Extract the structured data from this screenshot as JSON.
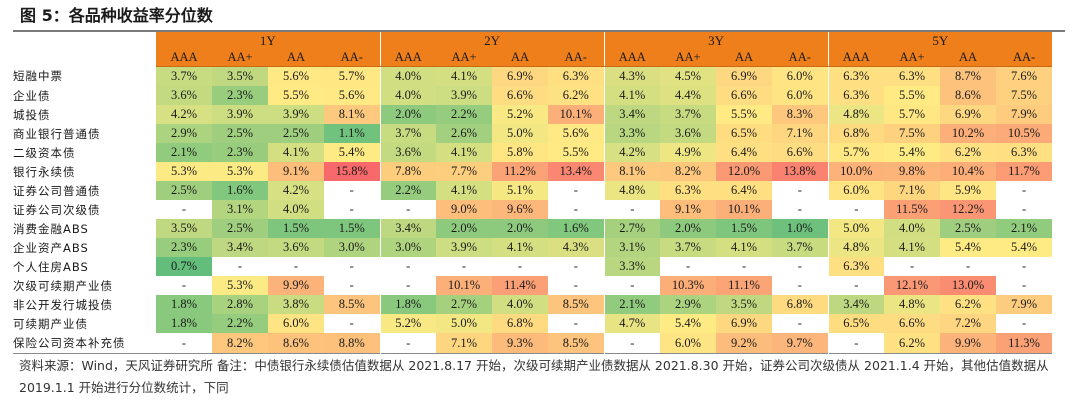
{
  "title": "图 5：各品种收益率分位数",
  "groups": [
    "1Y",
    "2Y",
    "3Y",
    "5Y"
  ],
  "ratings": [
    "AAA",
    "AA+",
    "AA",
    "AA-"
  ],
  "rows": [
    {
      "label": "短融中票",
      "values": [
        "3.7%",
        "3.5%",
        "5.6%",
        "5.7%",
        "4.0%",
        "4.1%",
        "6.9%",
        "6.3%",
        "4.3%",
        "4.5%",
        "6.9%",
        "6.0%",
        "6.3%",
        "6.3%",
        "8.7%",
        "7.6%"
      ]
    },
    {
      "label": "企业债",
      "values": [
        "3.6%",
        "2.3%",
        "5.5%",
        "5.6%",
        "4.0%",
        "3.9%",
        "6.6%",
        "6.2%",
        "4.1%",
        "4.4%",
        "6.6%",
        "6.0%",
        "6.3%",
        "5.5%",
        "8.6%",
        "7.5%"
      ]
    },
    {
      "label": "城投债",
      "values": [
        "4.2%",
        "3.9%",
        "3.9%",
        "8.1%",
        "2.0%",
        "2.2%",
        "5.2%",
        "10.1%",
        "3.4%",
        "3.7%",
        "5.5%",
        "8.3%",
        "4.8%",
        "5.7%",
        "6.9%",
        "7.9%"
      ]
    },
    {
      "label": "商业银行普通债",
      "values": [
        "2.9%",
        "2.5%",
        "2.5%",
        "1.1%",
        "3.7%",
        "2.6%",
        "5.0%",
        "5.6%",
        "3.3%",
        "3.6%",
        "6.5%",
        "7.1%",
        "6.8%",
        "7.5%",
        "10.2%",
        "10.5%"
      ]
    },
    {
      "label": "二级资本债",
      "values": [
        "2.1%",
        "2.3%",
        "4.1%",
        "5.4%",
        "3.6%",
        "4.1%",
        "5.8%",
        "5.5%",
        "4.2%",
        "4.9%",
        "6.4%",
        "6.6%",
        "5.7%",
        "5.4%",
        "6.2%",
        "6.3%"
      ]
    },
    {
      "label": "银行永续债",
      "values": [
        "5.3%",
        "5.3%",
        "9.1%",
        "15.8%",
        "7.8%",
        "7.7%",
        "11.2%",
        "13.4%",
        "8.1%",
        "8.2%",
        "12.0%",
        "13.8%",
        "10.0%",
        "9.8%",
        "10.4%",
        "11.7%"
      ]
    },
    {
      "label": "证券公司普通债",
      "values": [
        "2.5%",
        "1.6%",
        "4.2%",
        "-",
        "2.2%",
        "4.1%",
        "5.1%",
        "-",
        "4.8%",
        "6.3%",
        "6.4%",
        "-",
        "6.0%",
        "7.1%",
        "5.9%",
        "-"
      ]
    },
    {
      "label": "证券公司次级债",
      "values": [
        "-",
        "3.1%",
        "4.0%",
        "-",
        "-",
        "9.0%",
        "9.6%",
        "-",
        "-",
        "9.1%",
        "10.1%",
        "-",
        "-",
        "11.5%",
        "12.2%",
        "-"
      ]
    },
    {
      "label": "消费金融ABS",
      "values": [
        "3.5%",
        "2.5%",
        "1.5%",
        "1.5%",
        "3.4%",
        "2.0%",
        "2.0%",
        "1.6%",
        "2.7%",
        "2.0%",
        "1.5%",
        "1.0%",
        "5.0%",
        "4.0%",
        "2.5%",
        "2.1%"
      ]
    },
    {
      "label": "企业资产ABS",
      "values": [
        "2.3%",
        "3.4%",
        "3.6%",
        "3.0%",
        "3.0%",
        "3.9%",
        "4.1%",
        "4.3%",
        "3.1%",
        "3.7%",
        "4.1%",
        "3.7%",
        "4.8%",
        "4.1%",
        "5.4%",
        "5.4%"
      ]
    },
    {
      "label": "个人住房ABS",
      "values": [
        "0.7%",
        "-",
        "-",
        "-",
        "-",
        "-",
        "-",
        "-",
        "3.3%",
        "-",
        "-",
        "-",
        "6.3%",
        "-",
        "-",
        "-"
      ]
    },
    {
      "label": "次级可续期产业债",
      "values": [
        "-",
        "5.3%",
        "9.9%",
        "-",
        "-",
        "10.1%",
        "11.4%",
        "-",
        "-",
        "10.3%",
        "11.1%",
        "-",
        "-",
        "12.1%",
        "13.0%",
        "-"
      ]
    },
    {
      "label": "非公开发行城投债",
      "values": [
        "1.8%",
        "2.8%",
        "3.8%",
        "8.5%",
        "1.8%",
        "2.7%",
        "4.0%",
        "8.5%",
        "2.1%",
        "2.9%",
        "3.5%",
        "6.8%",
        "3.4%",
        "4.8%",
        "6.2%",
        "7.9%"
      ]
    },
    {
      "label": "可续期产业债",
      "values": [
        "1.8%",
        "2.2%",
        "6.0%",
        "-",
        "5.2%",
        "5.0%",
        "6.8%",
        "-",
        "4.7%",
        "5.4%",
        "6.9%",
        "-",
        "6.5%",
        "6.6%",
        "7.2%",
        "-"
      ]
    },
    {
      "label": "保险公司资本补充债",
      "values": [
        "-",
        "8.2%",
        "8.6%",
        "8.8%",
        "-",
        "7.1%",
        "9.3%",
        "8.5%",
        "-",
        "6.0%",
        "9.2%",
        "9.7%",
        "-",
        "6.2%",
        "9.9%",
        "11.3%"
      ]
    }
  ],
  "colors": {
    "header": "#ef7f1a",
    "low": "#63be7b",
    "mid": "#ffeb84",
    "high": "#f8696b",
    "empty": "#ffffff"
  },
  "note": "资料来源：Wind，天风证券研究所    备注：中债银行永续债估值数据从 2021.8.17 开始，次级可续期产业债数据从 2021.8.30 开始，证券公司次级债从 2021.1.4 开始，其他估值数据从 2019.1.1 开始进行分位数统计，下同"
}
